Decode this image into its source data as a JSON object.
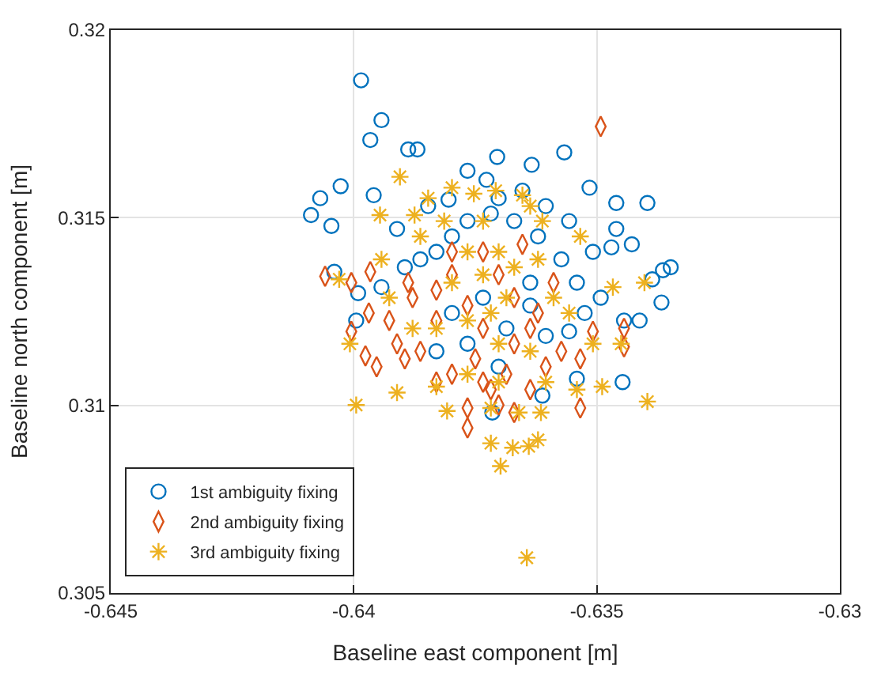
{
  "chart_data": {
    "type": "scatter",
    "xlabel": "Baseline east component [m]",
    "ylabel": "Baseline north component [m]",
    "xlim": [
      -0.645,
      -0.63
    ],
    "xticks": [
      -0.645,
      -0.64,
      -0.635,
      -0.63
    ],
    "ylim": [
      0.305,
      0.32
    ],
    "yticks": [
      0.305,
      0.31,
      0.315,
      0.32
    ],
    "grid": true,
    "legend": "bottom left",
    "series": [
      {
        "name": "1st ambiguity fixing",
        "color": "#0072bd",
        "marker": "circle",
        "x": [
          -0.63985,
          -0.63943,
          -0.63966,
          -0.64088,
          -0.64069,
          -0.64027,
          -0.64046,
          -0.63888,
          -0.63869,
          -0.63959,
          -0.63805,
          -0.63766,
          -0.63727,
          -0.63705,
          -0.63634,
          -0.63567,
          -0.63515,
          -0.6346,
          -0.6346,
          -0.6347,
          -0.63396,
          -0.63428,
          -0.63386,
          -0.63364,
          -0.63348,
          -0.63367,
          -0.63444,
          -0.63412,
          -0.63447,
          -0.6404,
          -0.63943,
          -0.63995,
          -0.63991,
          -0.63715,
          -0.63612,
          -0.63541,
          -0.63557,
          -0.63605,
          -0.63525,
          -0.63492,
          -0.63541,
          -0.63573,
          -0.63621,
          -0.6367,
          -0.63718,
          -0.63766,
          -0.63798,
          -0.6383,
          -0.63863,
          -0.63895,
          -0.63911,
          -0.63847,
          -0.63702,
          -0.63653,
          -0.63605,
          -0.63557,
          -0.63508,
          -0.63637,
          -0.63734,
          -0.63798,
          -0.63766,
          -0.63702,
          -0.6383,
          -0.63637,
          -0.63686
        ],
        "values": [
          0.31866,
          0.3176,
          0.31707,
          0.31507,
          0.31552,
          0.31584,
          0.31478,
          0.31682,
          0.31682,
          0.3156,
          0.31548,
          0.31625,
          0.31601,
          0.31662,
          0.31641,
          0.31674,
          0.3158,
          0.31539,
          0.3147,
          0.31421,
          0.31539,
          0.31429,
          0.31336,
          0.3136,
          0.31368,
          0.31274,
          0.31226,
          0.31226,
          0.31062,
          0.31356,
          0.31315,
          0.31226,
          0.31299,
          0.30981,
          0.31026,
          0.31071,
          0.31197,
          0.31185,
          0.31246,
          0.31287,
          0.31327,
          0.31389,
          0.3145,
          0.31491,
          0.31511,
          0.31491,
          0.3145,
          0.31409,
          0.31389,
          0.31368,
          0.3147,
          0.31531,
          0.31552,
          0.31572,
          0.31531,
          0.31491,
          0.31409,
          0.31327,
          0.31287,
          0.31246,
          0.31164,
          0.31103,
          0.31144,
          0.31266,
          0.31205
        ]
      },
      {
        "name": "2nd ambiguity fixing",
        "color": "#d95319",
        "marker": "diamond",
        "x": [
          -0.63492,
          -0.64059,
          -0.63966,
          -0.64005,
          -0.63969,
          -0.64005,
          -0.63976,
          -0.63953,
          -0.63895,
          -0.63863,
          -0.63927,
          -0.63879,
          -0.6383,
          -0.63798,
          -0.63766,
          -0.63734,
          -0.6375,
          -0.63766,
          -0.63766,
          -0.63718,
          -0.63686,
          -0.63702,
          -0.6367,
          -0.63637,
          -0.63605,
          -0.63573,
          -0.63534,
          -0.63534,
          -0.63508,
          -0.63444,
          -0.63444,
          -0.63637,
          -0.6367,
          -0.63621,
          -0.6367,
          -0.63702,
          -0.63734,
          -0.63798,
          -0.6383,
          -0.63798,
          -0.63734,
          -0.63653,
          -0.63888,
          -0.63911,
          -0.6383,
          -0.63589
        ],
        "values": [
          0.31743,
          0.31344,
          0.31356,
          0.31327,
          0.31246,
          0.31197,
          0.31132,
          0.31103,
          0.31124,
          0.31144,
          0.31226,
          0.31287,
          0.31307,
          0.31348,
          0.31266,
          0.31205,
          0.31124,
          0.30993,
          0.3094,
          0.31042,
          0.31083,
          0.31001,
          0.30981,
          0.31042,
          0.31103,
          0.31144,
          0.31124,
          0.30993,
          0.31197,
          0.31205,
          0.31156,
          0.31205,
          0.31164,
          0.31246,
          0.31287,
          0.31348,
          0.31409,
          0.31409,
          0.31226,
          0.31083,
          0.31062,
          0.31429,
          0.31327,
          0.31164,
          0.31062,
          0.31327
        ]
      },
      {
        "name": "3rd ambiguity fixing",
        "color": "#edb120",
        "marker": "cross",
        "x": [
          -0.63905,
          -0.63946,
          -0.63875,
          -0.6403,
          -0.64008,
          -0.63995,
          -0.63911,
          -0.6383,
          -0.63808,
          -0.63718,
          -0.6366,
          -0.63615,
          -0.63621,
          -0.63718,
          -0.63673,
          -0.6364,
          -0.63698,
          -0.63644,
          -0.63489,
          -0.63396,
          -0.6345,
          -0.63467,
          -0.63402,
          -0.63541,
          -0.63508,
          -0.63534,
          -0.63612,
          -0.63653,
          -0.63708,
          -0.63753,
          -0.63798,
          -0.63847,
          -0.63637,
          -0.63734,
          -0.63766,
          -0.63798,
          -0.63734,
          -0.63702,
          -0.6367,
          -0.63621,
          -0.63589,
          -0.63557,
          -0.63637,
          -0.63702,
          -0.63766,
          -0.6383,
          -0.63879,
          -0.63927,
          -0.63943,
          -0.63863,
          -0.63814,
          -0.63686,
          -0.63718,
          -0.63605,
          -0.63766,
          -0.63702
        ],
        "values": [
          0.31609,
          0.31507,
          0.31507,
          0.31336,
          0.31164,
          0.31001,
          0.31034,
          0.3105,
          0.30985,
          0.30993,
          0.30981,
          0.30981,
          0.30908,
          0.30899,
          0.30887,
          0.30891,
          0.30838,
          0.30594,
          0.3105,
          0.3101,
          0.31164,
          0.31315,
          0.31327,
          0.31042,
          0.31164,
          0.3145,
          0.31491,
          0.3156,
          0.31572,
          0.31564,
          0.3158,
          0.31552,
          0.31531,
          0.31491,
          0.31409,
          0.31327,
          0.31348,
          0.31409,
          0.31368,
          0.31389,
          0.31287,
          0.31246,
          0.31144,
          0.31164,
          0.31226,
          0.31205,
          0.31205,
          0.31287,
          0.31389,
          0.3145,
          0.31491,
          0.31287,
          0.31246,
          0.31062,
          0.31083,
          0.31062
        ]
      }
    ]
  }
}
